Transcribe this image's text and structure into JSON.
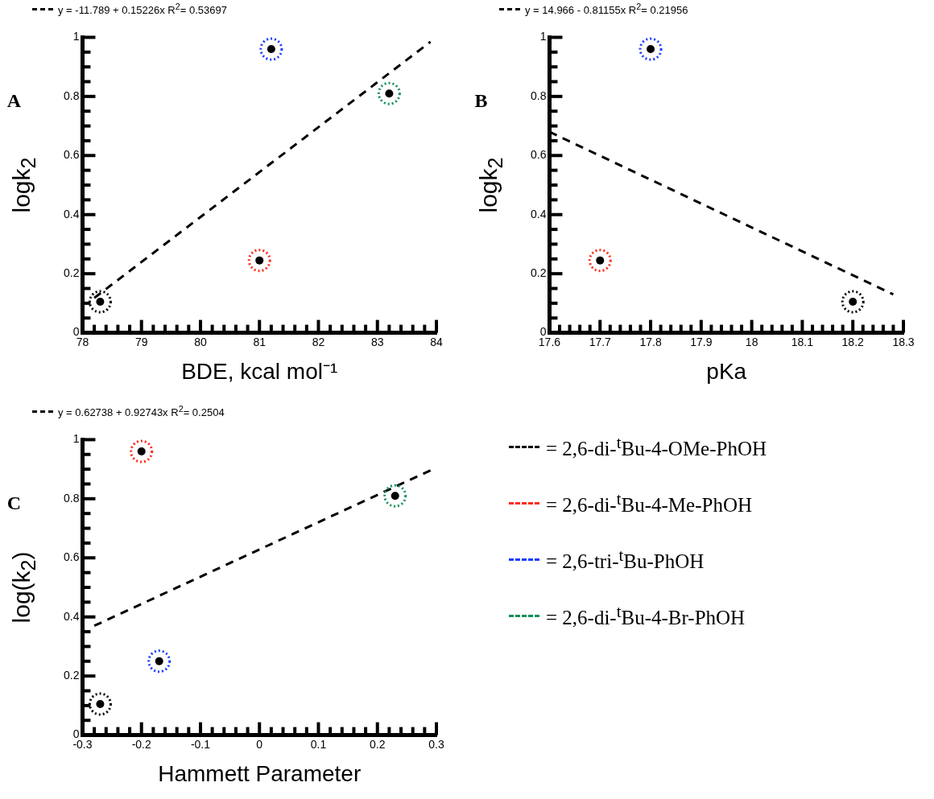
{
  "chart_data": [
    {
      "type": "scatter",
      "xlabel": "BDE, kcal mol⁻¹",
      "ylabel": "logk$_{2}$",
      "annotations": [
        "y = -11.789 + 0.15226x   R$^{2}$= 0.53697",
        "A"
      ],
      "legend": "bottom right",
      "marker": "circle",
      "xlim": [
        78,
        84
      ],
      "ylim": [
        0,
        1
      ],
      "xticks": [
        78,
        {
          "value": 78.2,
          "label": null
        },
        {
          "value": 78.4,
          "label": null
        },
        {
          "value": 78.6,
          "label": null
        },
        {
          "value": 78.8,
          "label": null
        },
        79,
        {
          "value": 79.2,
          "label": null
        },
        {
          "value": 79.4,
          "label": null
        },
        {
          "value": 79.6,
          "label": null
        },
        {
          "value": 79.8,
          "label": null
        },
        80,
        {
          "value": 80.2,
          "label": null
        },
        {
          "value": 80.4,
          "label": null
        },
        {
          "value": 80.6,
          "label": null
        },
        {
          "value": 80.8,
          "label": null
        },
        81,
        {
          "value": 81.2,
          "label": null
        },
        {
          "value": 81.4,
          "label": null
        },
        {
          "value": 81.6,
          "label": null
        },
        {
          "value": 81.8,
          "label": null
        },
        82,
        {
          "value": 82.2,
          "label": null
        },
        {
          "value": 82.4,
          "label": null
        },
        {
          "value": 82.6,
          "label": null
        },
        {
          "value": 82.8,
          "label": null
        },
        83,
        {
          "value": 83.2,
          "label": null
        },
        {
          "value": 83.4,
          "label": null
        },
        {
          "value": 83.6,
          "label": null
        },
        {
          "value": 83.8,
          "label": null
        },
        84
      ],
      "yticks": [
        0,
        {
          "value": 0.05,
          "label": null
        },
        {
          "value": 0.1,
          "label": null
        },
        {
          "value": 0.15,
          "label": null
        },
        0.2,
        {
          "value": 0.25,
          "label": null
        },
        {
          "value": 0.3,
          "label": null
        },
        {
          "value": 0.35,
          "label": null
        },
        0.4,
        {
          "value": 0.45,
          "label": null
        },
        {
          "value": 0.5,
          "label": null
        },
        {
          "value": 0.55,
          "label": null
        },
        0.6,
        {
          "value": 0.65,
          "label": null
        },
        {
          "value": 0.7,
          "label": null
        },
        {
          "value": 0.75,
          "label": null
        },
        0.8,
        {
          "value": 0.85,
          "label": null
        },
        {
          "value": 0.9,
          "label": null
        },
        {
          "value": 0.95,
          "label": null
        },
        1
      ],
      "series": [
        {
          "name": "= 2,6-di-$^{t}$Bu-4-OMe-PhOH",
          "color": "#000000",
          "x": [
            78.3
          ],
          "values": [
            0.105
          ]
        },
        {
          "name": "= 2,6-di-$^{t}$Bu-4-Me-PhOH",
          "color": "#ff2a1a",
          "x": [
            81.0
          ],
          "values": [
            0.245
          ]
        },
        {
          "name": "= 2,6-tri-$^{t}$Bu-PhOH",
          "color": "#1a3cff",
          "x": [
            81.2
          ],
          "values": [
            0.96
          ]
        },
        {
          "name": "= 2,6-di-$^{t}$Bu-4-Br-PhOH",
          "color": "#12905a",
          "x": [
            83.2
          ],
          "values": [
            0.81
          ]
        },
        {
          "type": "line",
          "color": "#000000",
          "line_style": "dashed",
          "marker": "none",
          "x": [
            78.2,
            83.9
          ],
          "values": [
            0.118,
            0.985
          ]
        }
      ]
    },
    {
      "type": "scatter",
      "xlabel": "pKa",
      "ylabel": "logk$_{2}$",
      "annotations": [
        "y = 14.966 - 0.81155x   R$^{2}$= 0.21956",
        "B"
      ],
      "marker": "circle",
      "xlim": [
        17.6,
        18.3
      ],
      "ylim": [
        0,
        1
      ],
      "xticks": [
        17.6,
        {
          "value": 17.62,
          "label": null
        },
        {
          "value": 17.64,
          "label": null
        },
        {
          "value": 17.66,
          "label": null
        },
        {
          "value": 17.68,
          "label": null
        },
        17.7,
        {
          "value": 17.72,
          "label": null
        },
        {
          "value": 17.74,
          "label": null
        },
        {
          "value": 17.76,
          "label": null
        },
        {
          "value": 17.78,
          "label": null
        },
        17.8,
        {
          "value": 17.82,
          "label": null
        },
        {
          "value": 17.84,
          "label": null
        },
        {
          "value": 17.86,
          "label": null
        },
        {
          "value": 17.88,
          "label": null
        },
        17.9,
        {
          "value": 17.92,
          "label": null
        },
        {
          "value": 17.94,
          "label": null
        },
        {
          "value": 17.96,
          "label": null
        },
        {
          "value": 17.98,
          "label": null
        },
        18,
        {
          "value": 18.02,
          "label": null
        },
        {
          "value": 18.04,
          "label": null
        },
        {
          "value": 18.06,
          "label": null
        },
        {
          "value": 18.08,
          "label": null
        },
        18.1,
        {
          "value": 18.12,
          "label": null
        },
        {
          "value": 18.14,
          "label": null
        },
        {
          "value": 18.16,
          "label": null
        },
        {
          "value": 18.18,
          "label": null
        },
        18.2,
        {
          "value": 18.22,
          "label": null
        },
        {
          "value": 18.24,
          "label": null
        },
        {
          "value": 18.26,
          "label": null
        },
        {
          "value": 18.28,
          "label": null
        },
        18.3
      ],
      "yticks": [
        0,
        {
          "value": 0.05,
          "label": null
        },
        {
          "value": 0.1,
          "label": null
        },
        {
          "value": 0.15,
          "label": null
        },
        0.2,
        {
          "value": 0.25,
          "label": null
        },
        {
          "value": 0.3,
          "label": null
        },
        {
          "value": 0.35,
          "label": null
        },
        0.4,
        {
          "value": 0.45,
          "label": null
        },
        {
          "value": 0.5,
          "label": null
        },
        {
          "value": 0.55,
          "label": null
        },
        0.6,
        {
          "value": 0.65,
          "label": null
        },
        {
          "value": 0.7,
          "label": null
        },
        {
          "value": 0.75,
          "label": null
        },
        0.8,
        {
          "value": 0.85,
          "label": null
        },
        {
          "value": 0.9,
          "label": null
        },
        {
          "value": 0.95,
          "label": null
        },
        1
      ],
      "series": [
        {
          "color": "#000000",
          "x": [
            18.2
          ],
          "values": [
            0.105
          ]
        },
        {
          "color": "#ff2a1a",
          "x": [
            17.7
          ],
          "values": [
            0.245
          ]
        },
        {
          "color": "#1a3cff",
          "x": [
            17.8
          ],
          "values": [
            0.96
          ]
        },
        {
          "type": "line",
          "color": "#000000",
          "line_style": "dashed",
          "marker": "none",
          "x": [
            17.6,
            18.28
          ],
          "values": [
            0.68,
            0.13
          ]
        }
      ]
    },
    {
      "type": "scatter",
      "xlabel": "Hammett Parameter",
      "ylabel": "log(k$_{2}$)",
      "annotations": [
        "y = 0.62738 + 0.92743x   R$^{2}$= 0.2504",
        "C"
      ],
      "marker": "circle",
      "xlim": [
        -0.3,
        0.3
      ],
      "ylim": [
        0,
        1
      ],
      "xticks": [
        -0.3,
        {
          "value": -0.28,
          "label": null
        },
        {
          "value": -0.26,
          "label": null
        },
        {
          "value": -0.24,
          "label": null
        },
        {
          "value": -0.22,
          "label": null
        },
        -0.2,
        {
          "value": -0.18,
          "label": null
        },
        {
          "value": -0.16,
          "label": null
        },
        {
          "value": -0.14,
          "label": null
        },
        {
          "value": -0.12,
          "label": null
        },
        -0.1,
        {
          "value": -0.08,
          "label": null
        },
        {
          "value": -0.06,
          "label": null
        },
        {
          "value": -0.04,
          "label": null
        },
        {
          "value": -0.02,
          "label": null
        },
        0,
        {
          "value": 0.02,
          "label": null
        },
        {
          "value": 0.04,
          "label": null
        },
        {
          "value": 0.06,
          "label": null
        },
        {
          "value": 0.08,
          "label": null
        },
        0.1,
        {
          "value": 0.12,
          "label": null
        },
        {
          "value": 0.14,
          "label": null
        },
        {
          "value": 0.16,
          "label": null
        },
        {
          "value": 0.18,
          "label": null
        },
        0.2,
        {
          "value": 0.22,
          "label": null
        },
        {
          "value": 0.24,
          "label": null
        },
        {
          "value": 0.26,
          "label": null
        },
        {
          "value": 0.28,
          "label": null
        },
        0.3
      ],
      "yticks": [
        0,
        {
          "value": 0.05,
          "label": null
        },
        {
          "value": 0.1,
          "label": null
        },
        {
          "value": 0.15,
          "label": null
        },
        0.2,
        {
          "value": 0.25,
          "label": null
        },
        {
          "value": 0.3,
          "label": null
        },
        {
          "value": 0.35,
          "label": null
        },
        0.4,
        {
          "value": 0.45,
          "label": null
        },
        {
          "value": 0.5,
          "label": null
        },
        {
          "value": 0.55,
          "label": null
        },
        0.6,
        {
          "value": 0.65,
          "label": null
        },
        {
          "value": 0.7,
          "label": null
        },
        {
          "value": 0.75,
          "label": null
        },
        0.8,
        {
          "value": 0.85,
          "label": null
        },
        {
          "value": 0.9,
          "label": null
        },
        {
          "value": 0.95,
          "label": null
        },
        1
      ],
      "series": [
        {
          "color": "#000000",
          "x": [
            -0.27
          ],
          "values": [
            0.105
          ]
        },
        {
          "color": "#ff2a1a",
          "x": [
            -0.2
          ],
          "values": [
            0.96
          ]
        },
        {
          "color": "#1a3cff",
          "x": [
            -0.17
          ],
          "values": [
            0.25
          ]
        },
        {
          "color": "#12905a",
          "x": [
            0.23
          ],
          "values": [
            0.81
          ]
        },
        {
          "type": "line",
          "color": "#000000",
          "line_style": "dashed",
          "marker": "none",
          "x": [
            -0.28,
            0.29
          ],
          "values": [
            0.37,
            0.896
          ]
        }
      ]
    }
  ]
}
